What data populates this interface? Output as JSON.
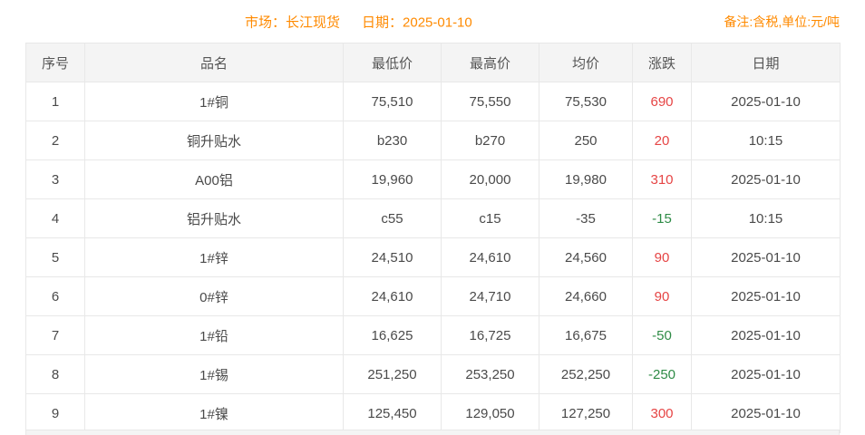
{
  "header": {
    "market_label": "市场：长江现货",
    "date_label": "日期：2025-01-10",
    "note": "备注:含税,单位:元/吨"
  },
  "colors": {
    "accent_orange": "#ff8a00",
    "change_up_red": "#e64545",
    "change_down_green": "#2e8b46",
    "table_border": "#e8e8e8",
    "table_header_bg": "#f4f4f4"
  },
  "table": {
    "columns": [
      "序号",
      "品名",
      "最低价",
      "最高价",
      "均价",
      "涨跌",
      "日期"
    ],
    "rows": [
      {
        "no": "1",
        "name": "1#铜",
        "low": "75,510",
        "high": "75,550",
        "avg": "75,530",
        "change": "690",
        "direction": "up",
        "date": "2025-01-10"
      },
      {
        "no": "2",
        "name": "铜升贴水",
        "low": "b230",
        "high": "b270",
        "avg": "250",
        "change": "20",
        "direction": "up",
        "date": "10:15"
      },
      {
        "no": "3",
        "name": "A00铝",
        "low": "19,960",
        "high": "20,000",
        "avg": "19,980",
        "change": "310",
        "direction": "up",
        "date": "2025-01-10"
      },
      {
        "no": "4",
        "name": "铝升贴水",
        "low": "c55",
        "high": "c15",
        "avg": "-35",
        "change": "-15",
        "direction": "down",
        "date": "10:15"
      },
      {
        "no": "5",
        "name": "1#锌",
        "low": "24,510",
        "high": "24,610",
        "avg": "24,560",
        "change": "90",
        "direction": "up",
        "date": "2025-01-10"
      },
      {
        "no": "6",
        "name": "0#锌",
        "low": "24,610",
        "high": "24,710",
        "avg": "24,660",
        "change": "90",
        "direction": "up",
        "date": "2025-01-10"
      },
      {
        "no": "7",
        "name": "1#铅",
        "low": "16,625",
        "high": "16,725",
        "avg": "16,675",
        "change": "-50",
        "direction": "down",
        "date": "2025-01-10"
      },
      {
        "no": "8",
        "name": "1#锡",
        "low": "251,250",
        "high": "253,250",
        "avg": "252,250",
        "change": "-250",
        "direction": "down",
        "date": "2025-01-10"
      },
      {
        "no": "9",
        "name": "1#镍",
        "low": "125,450",
        "high": "129,050",
        "avg": "127,250",
        "change": "300",
        "direction": "up",
        "date": "2025-01-10"
      }
    ]
  }
}
